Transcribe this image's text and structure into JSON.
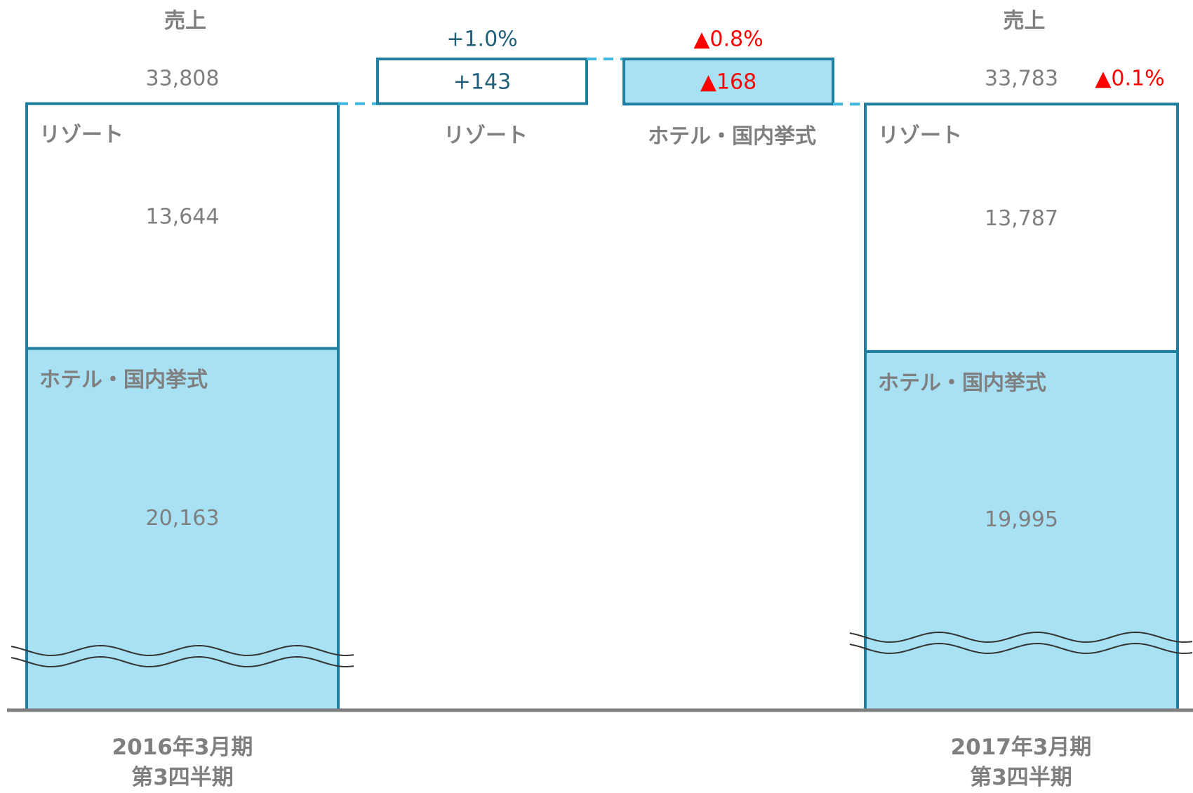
{
  "chart_data": {
    "type": "waterfall",
    "total_label": "売上",
    "categories": [
      "2016年3月期\n第3四半期",
      "2017年3月期\n第3四半期"
    ],
    "series": [
      {
        "name": "ホテル・国内挙式",
        "color": "#a8e0f4",
        "values": [
          20163,
          19995
        ],
        "value_labels": [
          "20,163",
          "19,995"
        ]
      },
      {
        "name": "リゾート",
        "color": "#ffffff",
        "values": [
          13644,
          13787
        ],
        "value_labels": [
          "13,644",
          "13,787"
        ]
      }
    ],
    "totals": [
      33808,
      33783
    ],
    "total_labels": [
      "33,808",
      "33,783"
    ],
    "total_change": -0.1,
    "total_change_label": "▲0.1%",
    "deltas": [
      {
        "name": "リゾート",
        "value": 143,
        "value_label": "+143",
        "pct": 1.0,
        "pct_label": "+1.0%",
        "color": "#ffffff"
      },
      {
        "name": "ホテル・国内挙式",
        "value": -168,
        "value_label": "▲168",
        "pct": -0.8,
        "pct_label": "▲0.8%",
        "color": "#a8e0f4"
      }
    ],
    "positive_color": "#1f5f7a",
    "negative_color": "#ff0000",
    "edge_color": "#1f7fa0",
    "connector_color": "#3fb8e0",
    "ylim": [
      0,
      34500
    ],
    "axis_break": true
  }
}
